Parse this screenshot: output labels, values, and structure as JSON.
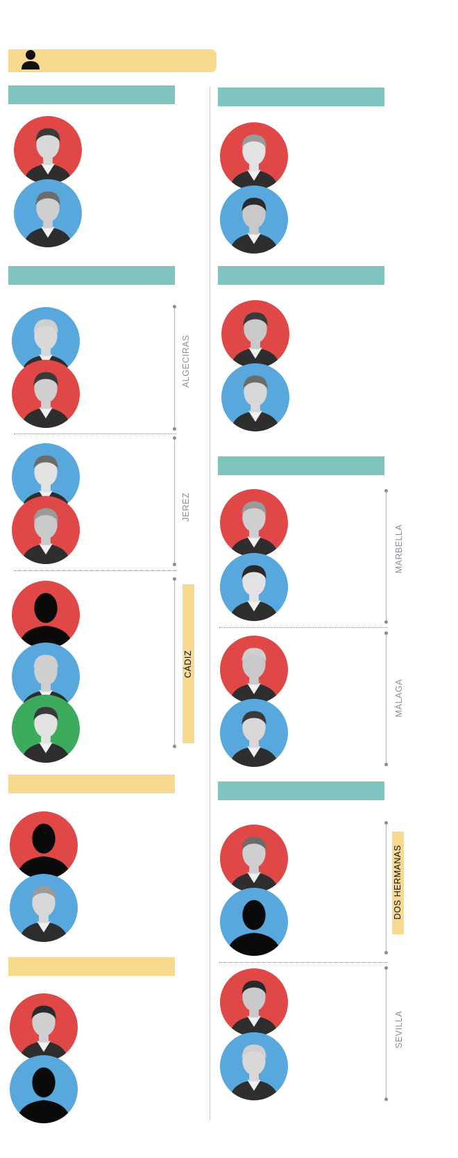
{
  "colors": {
    "red": "#e04848",
    "blue": "#58a8de",
    "green": "#3dab5c",
    "teal": "#80c4bf",
    "yellow": "#f7d990",
    "city_text": "#8d8f9c"
  },
  "legend": {
    "icon": "person-icon"
  },
  "cities": {
    "algeciras": "ALGECIRAS",
    "jerez": "JEREZ",
    "cadiz": "CÁDIZ",
    "marbella": "MARBELLA",
    "malaga": "MÁLAGA",
    "dos_hermanas": "DOS HERMANAS",
    "sevilla": "SEVILLA"
  },
  "portraits": [
    {
      "id": "l1a",
      "color": "red",
      "type": "photo"
    },
    {
      "id": "l1b",
      "color": "blue",
      "type": "photo"
    },
    {
      "id": "r1a",
      "color": "red",
      "type": "photo"
    },
    {
      "id": "r1b",
      "color": "blue",
      "type": "photo"
    },
    {
      "id": "alg_a",
      "color": "blue",
      "type": "photo"
    },
    {
      "id": "alg_b",
      "color": "red",
      "type": "photo"
    },
    {
      "id": "jer_a",
      "color": "blue",
      "type": "photo"
    },
    {
      "id": "jer_b",
      "color": "red",
      "type": "photo"
    },
    {
      "id": "cad_a",
      "color": "red",
      "type": "silhouette"
    },
    {
      "id": "cad_b",
      "color": "blue",
      "type": "photo"
    },
    {
      "id": "cad_c",
      "color": "green",
      "type": "photo"
    },
    {
      "id": "l4a",
      "color": "red",
      "type": "silhouette"
    },
    {
      "id": "l4b",
      "color": "blue",
      "type": "photo"
    },
    {
      "id": "l5a",
      "color": "red",
      "type": "photo"
    },
    {
      "id": "l5b",
      "color": "blue",
      "type": "silhouette"
    },
    {
      "id": "r2a",
      "color": "red",
      "type": "photo"
    },
    {
      "id": "r2b",
      "color": "blue",
      "type": "photo"
    },
    {
      "id": "mar_a",
      "color": "red",
      "type": "photo"
    },
    {
      "id": "mar_b",
      "color": "blue",
      "type": "photo"
    },
    {
      "id": "mal_a",
      "color": "red",
      "type": "photo"
    },
    {
      "id": "mal_b",
      "color": "blue",
      "type": "photo"
    },
    {
      "id": "dh_a",
      "color": "red",
      "type": "photo"
    },
    {
      "id": "dh_b",
      "color": "blue",
      "type": "silhouette"
    },
    {
      "id": "sev_a",
      "color": "red",
      "type": "photo"
    },
    {
      "id": "sev_b",
      "color": "blue",
      "type": "photo"
    }
  ]
}
